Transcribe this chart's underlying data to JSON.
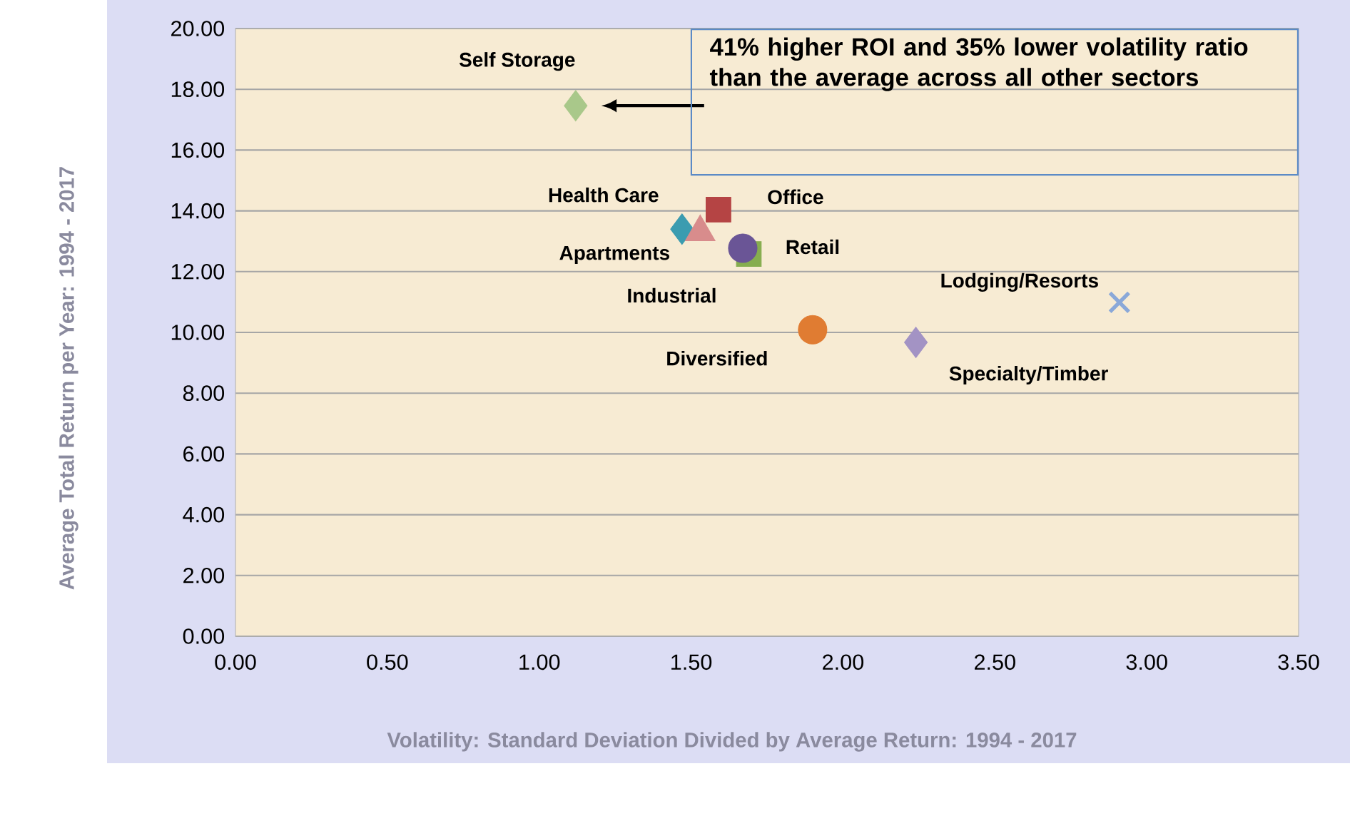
{
  "chart_data": {
    "type": "scatter",
    "xlabel": "Volatility: Standard Deviation Divided by Average Return: 1994 - 2017",
    "ylabel": "Average Total Return per Year: 1994 - 2017",
    "xlim": [
      0,
      3.5
    ],
    "xticks": [
      {
        "value": 0,
        "label": "0.00"
      },
      {
        "value": 0.5,
        "label": "0.50"
      },
      {
        "value": 1,
        "label": "1.00"
      },
      {
        "value": 1.5,
        "label": "1.50"
      },
      {
        "value": 2,
        "label": "2.00"
      },
      {
        "value": 2.5,
        "label": "2.50"
      },
      {
        "value": 3,
        "label": "3.00"
      },
      {
        "value": 3.5,
        "label": "3.50"
      }
    ],
    "ylim": [
      0,
      20
    ],
    "yticks": [
      {
        "value": 0,
        "label": "0.00"
      },
      {
        "value": 2,
        "label": "2.00"
      },
      {
        "value": 4,
        "label": "4.00"
      },
      {
        "value": 6,
        "label": "6.00"
      },
      {
        "value": 8,
        "label": "8.00"
      },
      {
        "value": 10,
        "label": "10.00"
      },
      {
        "value": 12,
        "label": "12.00"
      },
      {
        "value": 14,
        "label": "14.00"
      },
      {
        "value": 16,
        "label": "16.00"
      },
      {
        "value": 18,
        "label": "18.00"
      },
      {
        "value": 20,
        "label": "20.00"
      }
    ],
    "grid": "y",
    "series": [
      {
        "name": "Self Storage",
        "color": "#a9c88a",
        "marker": "diamond",
        "x": [
          1.12
        ],
        "values": [
          17.46
        ]
      },
      {
        "name": "Office",
        "color": "#b54444",
        "marker": "square",
        "x": [
          1.59
        ],
        "values": [
          14.04
        ]
      },
      {
        "name": "Health Care",
        "color": "#3b9cb0",
        "marker": "diamond",
        "x": [
          1.47
        ],
        "values": [
          13.4
        ]
      },
      {
        "name": "Apartments",
        "color": "#d88c8c",
        "marker": "triangle",
        "x": [
          1.53
        ],
        "values": [
          13.3
        ]
      },
      {
        "name": "Industrial",
        "color": "#86ad4f",
        "marker": "square",
        "x": [
          1.69
        ],
        "values": [
          12.58
        ]
      },
      {
        "name": "Retail",
        "color": "#6a5596",
        "marker": "circle",
        "x": [
          1.67
        ],
        "values": [
          12.77
        ]
      },
      {
        "name": "Diversified",
        "color": "#e07c32",
        "marker": "circle",
        "x": [
          1.9
        ],
        "values": [
          10.09
        ]
      },
      {
        "name": "Specialty/Timber",
        "color": "#a393c4",
        "marker": "diamond",
        "x": [
          2.24
        ],
        "values": [
          9.67
        ]
      },
      {
        "name": "Lodging/Resorts",
        "color": "#8aa8d8",
        "marker": "cross",
        "x": [
          2.91
        ],
        "values": [
          10.99
        ]
      }
    ],
    "annotations": [
      "41% higher ROI and 35% lower volatility ratio than the average across all other sectors"
    ]
  }
}
